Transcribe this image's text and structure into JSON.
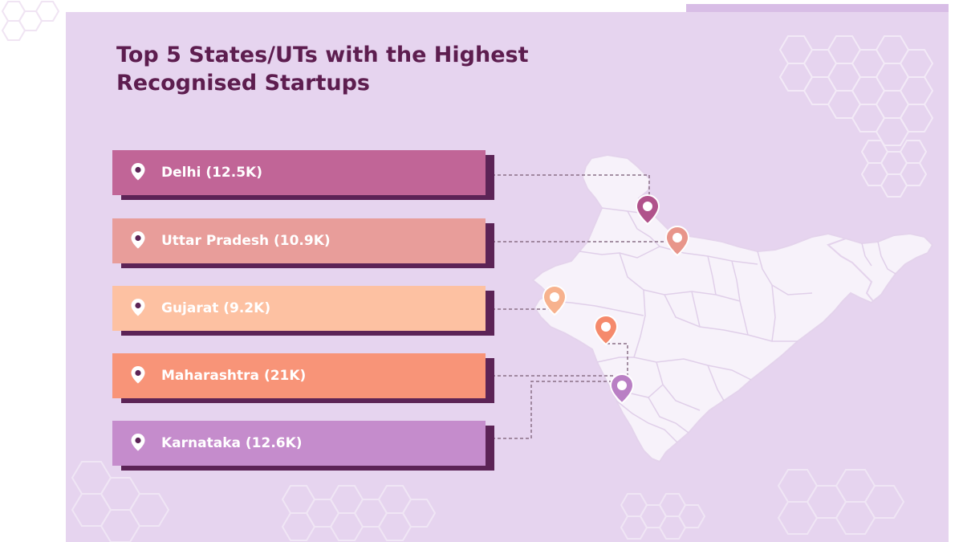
{
  "title_line1": "Top 5 States/UTs with the Highest",
  "title_line2": "Recognised Startups",
  "states": [
    {
      "label": "Delhi (12.5K)",
      "color": "#c16597"
    },
    {
      "label": "Uttar Pradesh (10.9K)",
      "color": "#e89d9a"
    },
    {
      "label": "Gujarat (9.2K)",
      "color": "#fdc1a2"
    },
    {
      "label": "Maharashtra (21K)",
      "color": "#f89478"
    },
    {
      "label": "Karnataka (12.6K)",
      "color": "#c58ccc"
    }
  ],
  "colors": {
    "background": "#e6d4ef",
    "title": "#5d1d4f",
    "bar_shadow": "#5c2356",
    "map_fill": "#f7f2fa"
  },
  "map_icon": "india-map-icon",
  "pin_icon": "location-pin-icon"
}
